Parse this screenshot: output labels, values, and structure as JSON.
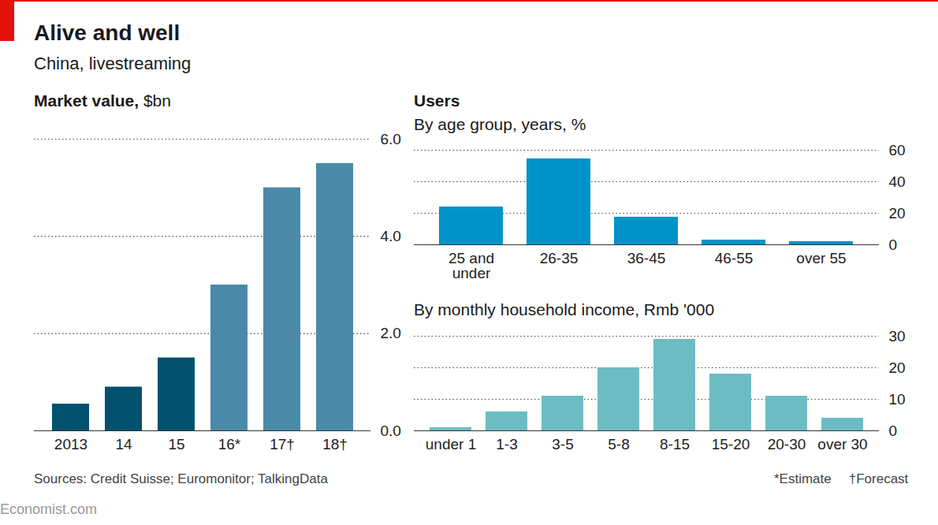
{
  "title": "Alive and well",
  "subtitle": "China, livestreaming",
  "source": "Sources: Credit Suisse; Euromonitor; TalkingData",
  "notes": [
    "*Estimate",
    "†Forecast"
  ],
  "credit": "Economist.com",
  "chart_data": [
    {
      "type": "bar",
      "title": "Market value,",
      "units": "$bn",
      "categories": [
        "2013",
        "14",
        "15",
        "16*",
        "17†",
        "18†"
      ],
      "values": [
        0.55,
        0.9,
        1.5,
        3.0,
        5.0,
        5.5
      ],
      "colors": [
        "#00506e",
        "#00506e",
        "#00506e",
        "#4a8aa8",
        "#4a8aa8",
        "#4a8aa8"
      ],
      "ylim": [
        0,
        6
      ],
      "yticks": [
        0,
        2,
        4,
        6
      ],
      "grid": true
    },
    {
      "type": "bar",
      "section": "Users",
      "title": "By age group,",
      "units": "years, %",
      "categories": [
        "25 and under",
        "26-35",
        "36-45",
        "46-55",
        "over 55"
      ],
      "values": [
        24,
        54.5,
        17.5,
        3,
        2
      ],
      "color": "#0093c9",
      "ylim": [
        0,
        60
      ],
      "yticks": [
        0,
        20,
        40,
        60
      ],
      "grid": true
    },
    {
      "type": "bar",
      "title": "By monthly household income,",
      "units": "Rmb '000",
      "categories": [
        "under 1",
        "1-3",
        "3-5",
        "5-8",
        "8-15",
        "15-20",
        "20-30",
        "over 30"
      ],
      "values": [
        1,
        6,
        11,
        20,
        29,
        18,
        11,
        4
      ],
      "color": "#6dbcc3",
      "ylim": [
        0,
        30
      ],
      "yticks": [
        0,
        10,
        20,
        30
      ],
      "grid": true
    }
  ]
}
